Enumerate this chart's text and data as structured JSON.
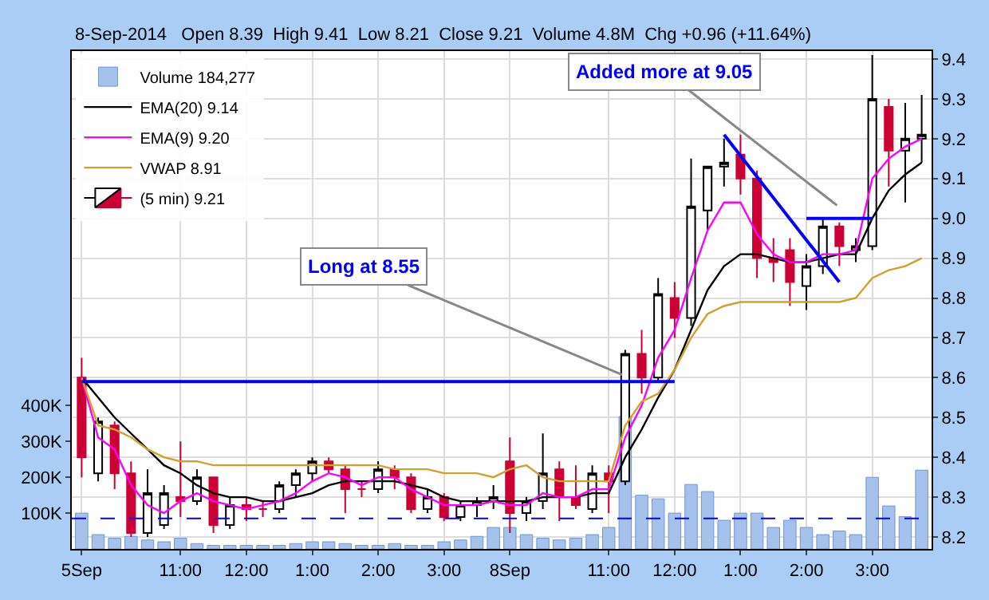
{
  "chart_data": {
    "type": "candlestick",
    "subtitle": "8-Sep-2014   Open 8.39  High 9.41  Low 8.21  Close 9.21  Volume 4.8M  Chg +0.96 (+11.64%)",
    "categories": [
      "5Sep",
      null,
      null,
      null,
      null,
      null,
      "11:00",
      null,
      null,
      null,
      "12:00",
      null,
      null,
      null,
      "1:00",
      null,
      null,
      null,
      "2:00",
      null,
      null,
      null,
      "3:00",
      null,
      null,
      null,
      "8Sep",
      null,
      null,
      null,
      null,
      null,
      "11:00",
      null,
      null,
      null,
      "12:00",
      null,
      null,
      null,
      "1:00",
      null,
      null,
      null,
      "2:00",
      null,
      null,
      null,
      "3:00",
      null,
      null,
      null
    ],
    "series": [
      {
        "name": "Volume 184,277",
        "type": "bar",
        "axis": "y2",
        "color": "#a4c2ec",
        "values": [
          100000,
          40000,
          30000,
          35000,
          25000,
          20000,
          30000,
          15000,
          10000,
          10000,
          10000,
          10000,
          10000,
          15000,
          20000,
          20000,
          15000,
          10000,
          10000,
          15000,
          10000,
          10000,
          20000,
          25000,
          35000,
          60000,
          60000,
          40000,
          30000,
          25000,
          30000,
          40000,
          60000,
          370000,
          150000,
          140000,
          100000,
          180000,
          160000,
          80000,
          100000,
          100000,
          60000,
          80000,
          60000,
          40000,
          50000,
          40000,
          200000,
          120000,
          90000,
          220000
        ]
      },
      {
        "name": "(5 min) 9.21",
        "ohlc": [
          [
            8.6,
            8.65,
            8.35,
            8.4
          ],
          [
            8.36,
            8.5,
            8.34,
            8.49
          ],
          [
            8.48,
            8.49,
            8.32,
            8.36
          ],
          [
            8.36,
            8.39,
            8.2,
            8.21
          ],
          [
            8.21,
            8.37,
            8.2,
            8.31
          ],
          [
            8.23,
            8.33,
            8.22,
            8.31
          ],
          [
            8.3,
            8.44,
            8.25,
            8.29
          ],
          [
            8.29,
            8.37,
            8.28,
            8.35
          ],
          [
            8.35,
            8.35,
            8.21,
            8.23
          ],
          [
            8.23,
            8.3,
            8.22,
            8.28
          ],
          [
            8.28,
            8.3,
            8.24,
            8.27
          ],
          [
            8.27,
            8.29,
            8.25,
            8.27
          ],
          [
            8.27,
            8.34,
            8.26,
            8.33
          ],
          [
            8.33,
            8.37,
            8.3,
            8.36
          ],
          [
            8.36,
            8.4,
            8.34,
            8.39
          ],
          [
            8.39,
            8.4,
            8.36,
            8.37
          ],
          [
            8.37,
            8.38,
            8.26,
            8.32
          ],
          [
            8.32,
            8.34,
            8.3,
            8.32
          ],
          [
            8.32,
            8.39,
            8.31,
            8.37
          ],
          [
            8.37,
            8.38,
            8.32,
            8.35
          ],
          [
            8.35,
            8.36,
            8.26,
            8.27
          ],
          [
            8.27,
            8.32,
            8.26,
            8.3
          ],
          [
            8.3,
            8.31,
            8.24,
            8.25
          ],
          [
            8.25,
            8.29,
            8.24,
            8.28
          ],
          [
            8.28,
            8.3,
            8.25,
            8.29
          ],
          [
            8.29,
            8.33,
            8.27,
            8.3
          ],
          [
            8.39,
            8.45,
            8.21,
            8.26
          ],
          [
            8.26,
            8.3,
            8.24,
            8.29
          ],
          [
            8.29,
            8.46,
            8.27,
            8.36
          ],
          [
            8.37,
            8.39,
            8.24,
            8.3
          ],
          [
            8.3,
            8.38,
            8.27,
            8.28
          ],
          [
            8.27,
            8.38,
            8.26,
            8.36
          ],
          [
            8.36,
            8.38,
            8.26,
            8.34
          ],
          [
            8.34,
            8.67,
            8.33,
            8.66
          ],
          [
            8.66,
            8.72,
            8.56,
            8.6
          ],
          [
            8.6,
            8.85,
            8.59,
            8.81
          ],
          [
            8.8,
            8.84,
            8.7,
            8.75
          ],
          [
            8.75,
            9.15,
            8.73,
            9.03
          ],
          [
            9.02,
            9.13,
            8.97,
            9.13
          ],
          [
            9.13,
            9.2,
            9.08,
            9.14
          ],
          [
            9.16,
            9.21,
            9.06,
            9.1
          ],
          [
            9.1,
            9.12,
            8.85,
            8.9
          ],
          [
            8.9,
            8.95,
            8.84,
            8.89
          ],
          [
            8.92,
            8.95,
            8.78,
            8.84
          ],
          [
            8.83,
            8.91,
            8.77,
            8.88
          ],
          [
            8.88,
            9.0,
            8.86,
            8.98
          ],
          [
            8.98,
            8.99,
            8.88,
            8.93
          ],
          [
            8.92,
            8.95,
            8.89,
            8.93
          ],
          [
            8.93,
            9.41,
            8.92,
            9.3
          ],
          [
            9.28,
            9.3,
            9.08,
            9.17
          ],
          [
            9.17,
            9.29,
            9.04,
            9.2
          ],
          [
            9.2,
            9.31,
            9.14,
            9.21
          ]
        ]
      },
      {
        "name": "EMA(20) 9.14",
        "type": "line",
        "color": "#000000",
        "values": [
          8.6,
          8.55,
          8.5,
          8.46,
          8.42,
          8.38,
          8.36,
          8.33,
          8.31,
          8.3,
          8.3,
          8.29,
          8.29,
          8.3,
          8.31,
          8.33,
          8.34,
          8.34,
          8.34,
          8.34,
          8.33,
          8.32,
          8.3,
          8.29,
          8.29,
          8.29,
          8.29,
          8.29,
          8.3,
          8.3,
          8.3,
          8.31,
          8.31,
          8.4,
          8.47,
          8.55,
          8.62,
          8.72,
          8.82,
          8.88,
          8.91,
          8.91,
          8.9,
          8.89,
          8.89,
          8.9,
          8.91,
          8.91,
          9.0,
          9.07,
          9.11,
          9.14
        ]
      },
      {
        "name": "EMA(9) 9.20",
        "type": "line",
        "color": "#ff00ff",
        "values": [
          8.6,
          8.45,
          8.42,
          8.33,
          8.28,
          8.26,
          8.29,
          8.31,
          8.29,
          8.28,
          8.27,
          8.28,
          8.29,
          8.31,
          8.34,
          8.36,
          8.35,
          8.33,
          8.35,
          8.35,
          8.32,
          8.3,
          8.28,
          8.28,
          8.28,
          8.29,
          8.28,
          8.28,
          8.31,
          8.3,
          8.3,
          8.32,
          8.32,
          8.45,
          8.53,
          8.65,
          8.72,
          8.85,
          8.97,
          9.04,
          9.04,
          8.96,
          8.91,
          8.89,
          8.89,
          8.91,
          8.91,
          8.92,
          9.1,
          9.15,
          9.18,
          9.2
        ]
      },
      {
        "name": "VWAP 8.91",
        "type": "line",
        "color": "#d4a02c",
        "values": [
          8.6,
          8.48,
          8.47,
          8.45,
          8.42,
          8.4,
          8.39,
          8.39,
          8.38,
          8.38,
          8.38,
          8.38,
          8.38,
          8.38,
          8.38,
          8.38,
          8.38,
          8.38,
          8.38,
          8.37,
          8.37,
          8.37,
          8.36,
          8.36,
          8.36,
          8.35,
          8.37,
          8.38,
          8.35,
          8.34,
          8.34,
          8.34,
          8.34,
          8.48,
          8.54,
          8.56,
          8.62,
          8.7,
          8.76,
          8.78,
          8.79,
          8.79,
          8.79,
          8.79,
          8.79,
          8.79,
          8.79,
          8.8,
          8.85,
          8.87,
          8.88,
          8.9
        ]
      },
      {
        "type": "line",
        "color": "#0000ff",
        "values": [
          8.59,
          null,
          null,
          null,
          null,
          null,
          null,
          null,
          null,
          null,
          null,
          null,
          null,
          null,
          null,
          null,
          null,
          null,
          null,
          null,
          null,
          null,
          null,
          null,
          null,
          null,
          null,
          null,
          null,
          null,
          null,
          null,
          null,
          null,
          null,
          null,
          8.59,
          null,
          null,
          null,
          null,
          null,
          null,
          null,
          null,
          null,
          null,
          null,
          null,
          null,
          null,
          null
        ]
      },
      {
        "type": "line",
        "color": "#0000ff",
        "values": [
          null,
          null,
          null,
          null,
          null,
          null,
          null,
          null,
          null,
          null,
          null,
          null,
          null,
          null,
          null,
          null,
          null,
          null,
          null,
          null,
          null,
          null,
          null,
          null,
          null,
          null,
          null,
          null,
          null,
          null,
          null,
          null,
          null,
          null,
          null,
          null,
          null,
          null,
          null,
          9.21,
          null,
          null,
          null,
          null,
          null,
          null,
          8.84,
          null,
          null,
          null,
          null,
          null
        ]
      },
      {
        "type": "line",
        "color": "#0000ff",
        "values": [
          null,
          null,
          null,
          null,
          null,
          null,
          null,
          null,
          null,
          null,
          null,
          null,
          null,
          null,
          null,
          null,
          null,
          null,
          null,
          null,
          null,
          null,
          null,
          null,
          null,
          null,
          null,
          null,
          null,
          null,
          null,
          null,
          null,
          null,
          null,
          null,
          null,
          null,
          null,
          null,
          null,
          null,
          null,
          null,
          9.0,
          null,
          null,
          null,
          9.0,
          null,
          null,
          null
        ]
      }
    ],
    "ref_lines": [
      {
        "axis": "y2",
        "value": 85000,
        "color": "#0000ff",
        "line_style": "dashed"
      }
    ],
    "annotations": [
      "Long at 8.55",
      "Added more at 9.05"
    ],
    "ylim": [
      8.17,
      9.42
    ],
    "yticks": [
      8.2,
      8.3,
      8.4,
      8.5,
      8.6,
      8.7,
      8.8,
      8.9,
      {
        "value": 9.0,
        "label": "9.0"
      },
      9.1,
      9.2,
      9.3,
      9.4
    ],
    "y2lim": [
      0,
      1390000
    ],
    "y2ticks": [
      {
        "value": 100000,
        "label": "100K"
      },
      {
        "value": 200000,
        "label": "200K"
      },
      {
        "value": 300000,
        "label": "300K"
      },
      {
        "value": 400000,
        "label": "400K"
      }
    ],
    "grid": true,
    "legend": "top left"
  }
}
